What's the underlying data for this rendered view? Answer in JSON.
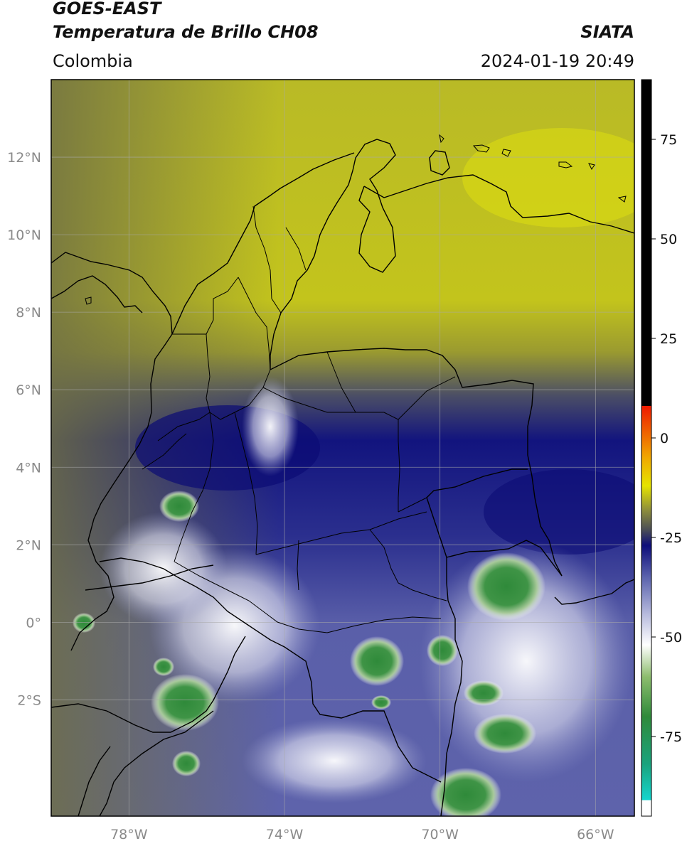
{
  "header": {
    "title_line1": "GOES-EAST",
    "title_line2": "Temperatura de Brillo CH08",
    "brand": "SIATA",
    "region": "Colombia",
    "timestamp": "2024-01-19 20:49"
  },
  "map": {
    "lon_range": [
      -80,
      -65
    ],
    "lat_range": [
      -5,
      14
    ],
    "lat_ticks": [
      {
        "value": 12,
        "label": "12°N"
      },
      {
        "value": 10,
        "label": "10°N"
      },
      {
        "value": 8,
        "label": "8°N"
      },
      {
        "value": 6,
        "label": "6°N"
      },
      {
        "value": 4,
        "label": "4°N"
      },
      {
        "value": 2,
        "label": "2°N"
      },
      {
        "value": 0,
        "label": "0°"
      },
      {
        "value": -2,
        "label": "2°S"
      }
    ],
    "lon_ticks": [
      {
        "value": -78,
        "label": "78°W"
      },
      {
        "value": -74,
        "label": "74°W"
      },
      {
        "value": -70,
        "label": "70°W"
      },
      {
        "value": -66,
        "label": "66°W"
      }
    ],
    "gridlines": true
  },
  "colorbar": {
    "range": [
      -95,
      90
    ],
    "ticks": [
      {
        "value": 75,
        "label": "75"
      },
      {
        "value": 50,
        "label": "50"
      },
      {
        "value": 25,
        "label": "25"
      },
      {
        "value": 0,
        "label": "0"
      },
      {
        "value": -25,
        "label": "-25"
      },
      {
        "value": -50,
        "label": "-50"
      },
      {
        "value": -75,
        "label": "-75"
      }
    ],
    "stops": [
      {
        "value": -95,
        "color": "#ffffff"
      },
      {
        "value": -91,
        "color": "#ffffff"
      },
      {
        "value": -91,
        "color": "#14d6cf"
      },
      {
        "value": -82,
        "color": "#1aa37e"
      },
      {
        "value": -70,
        "color": "#2f8a3a"
      },
      {
        "value": -60,
        "color": "#8dbd6e"
      },
      {
        "value": -52,
        "color": "#ffffff"
      },
      {
        "value": -44,
        "color": "#b4b8dc"
      },
      {
        "value": -35,
        "color": "#5b63ad"
      },
      {
        "value": -27,
        "color": "#0d0d7a"
      },
      {
        "value": -23,
        "color": "#4c4f55"
      },
      {
        "value": -18,
        "color": "#8f8f3a"
      },
      {
        "value": -12,
        "color": "#e6e400"
      },
      {
        "value": -5,
        "color": "#f0a800"
      },
      {
        "value": 8,
        "color": "#ee1a00"
      },
      {
        "value": 8,
        "color": "#000000"
      },
      {
        "value": 90,
        "color": "#000000"
      }
    ]
  }
}
